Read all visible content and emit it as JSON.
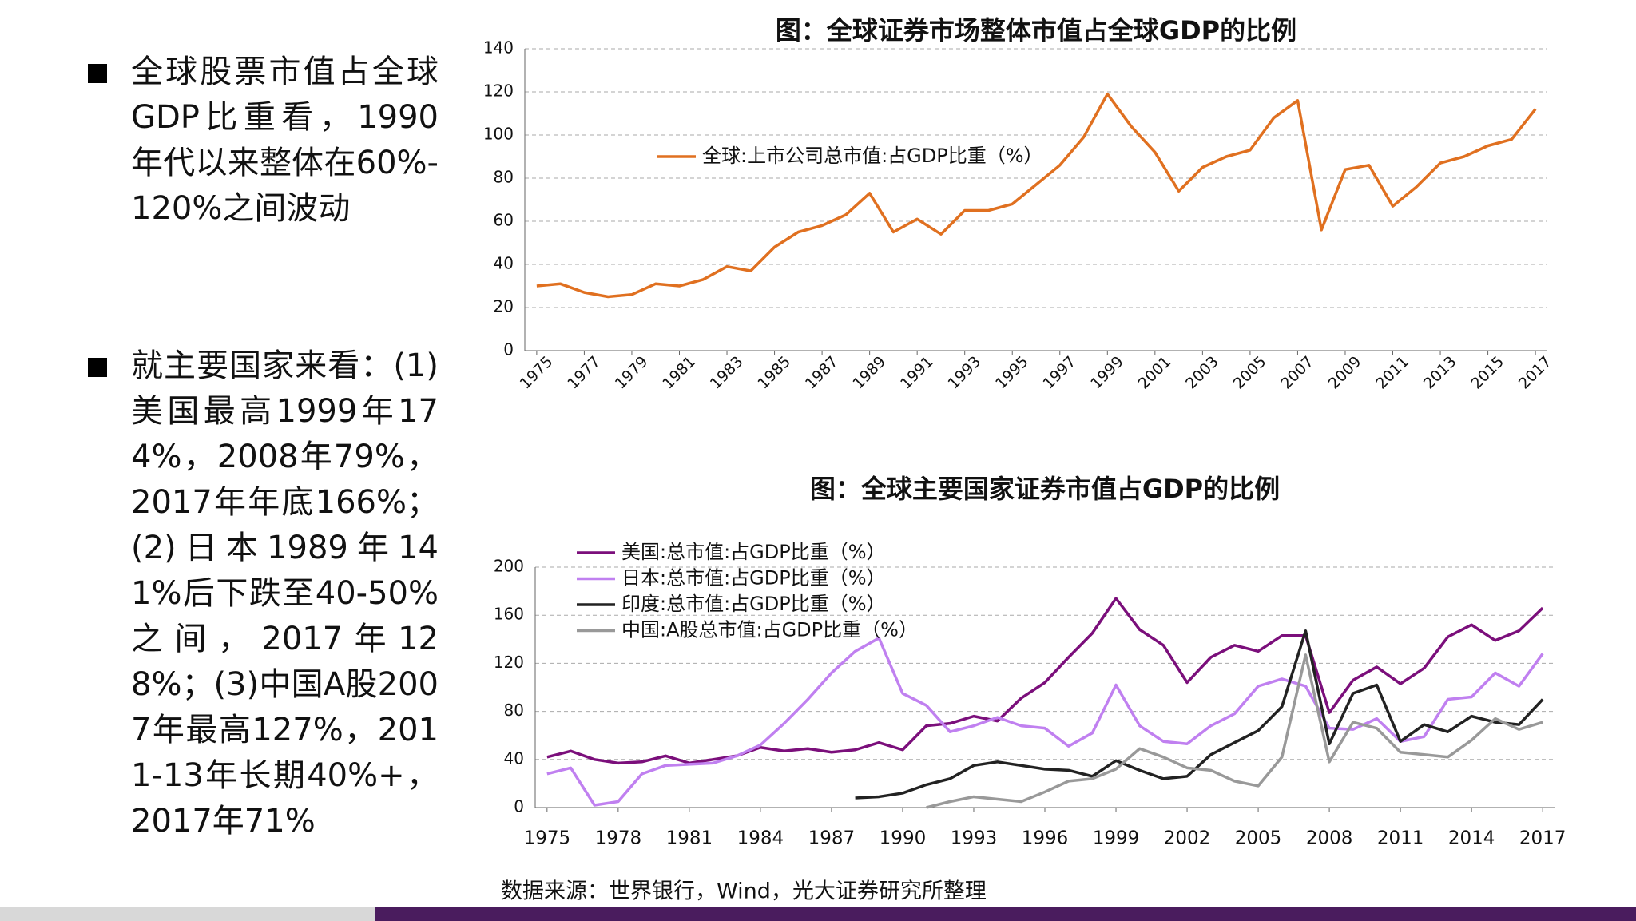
{
  "bullets": [
    "全球股票市值占全球GDP比重看，1990年代以来整体在60%-120%之间波动",
    "就主要国家来看：(1)美国最高1999年174%，2008年79%，2017年年底166%；(2)日本1989年141%后下跌至40-50%之间，2017年128%；(3)中国A股2007年最高127%，2011-13年长期40%+，2017年71%"
  ],
  "source": "数据来源：世界银行，Wind，光大证券研究所整理",
  "chart_data": [
    {
      "type": "line",
      "title": "图：全球证券市场整体市值占全球GDP的比例",
      "x": [
        1975,
        1976,
        1977,
        1978,
        1979,
        1980,
        1981,
        1982,
        1983,
        1984,
        1985,
        1986,
        1987,
        1988,
        1989,
        1990,
        1991,
        1992,
        1993,
        1994,
        1995,
        1996,
        1997,
        1998,
        1999,
        2000,
        2001,
        2002,
        2003,
        2004,
        2005,
        2006,
        2007,
        2008,
        2009,
        2010,
        2011,
        2012,
        2013,
        2014,
        2015,
        2016,
        2017
      ],
      "xlim": [
        1974.5,
        2017.5
      ],
      "xticks": [
        1975,
        1977,
        1979,
        1981,
        1983,
        1985,
        1987,
        1989,
        1991,
        1993,
        1995,
        1997,
        1999,
        2001,
        2003,
        2005,
        2007,
        2009,
        2011,
        2013,
        2015,
        2017
      ],
      "ylim": [
        0,
        140
      ],
      "yticks": [
        0,
        20,
        40,
        60,
        80,
        100,
        120,
        140
      ],
      "grid": true,
      "legend": "left",
      "series": [
        {
          "name": "全球:上市公司总市值:占GDP比重（%）",
          "color": "#e07020",
          "values": [
            30,
            31,
            27,
            25,
            26,
            31,
            30,
            33,
            39,
            37,
            48,
            55,
            58,
            63,
            73,
            55,
            61,
            54,
            65,
            65,
            68,
            77,
            86,
            99,
            119,
            104,
            92,
            74,
            85,
            90,
            93,
            108,
            116,
            56,
            84,
            86,
            67,
            76,
            87,
            90,
            95,
            98,
            112
          ]
        }
      ]
    },
    {
      "type": "line",
      "title": "图：全球主要国家证券市值占GDP的比例",
      "x": [
        1975,
        1976,
        1977,
        1978,
        1979,
        1980,
        1981,
        1982,
        1983,
        1984,
        1985,
        1986,
        1987,
        1988,
        1989,
        1990,
        1991,
        1992,
        1993,
        1994,
        1995,
        1996,
        1997,
        1998,
        1999,
        2000,
        2001,
        2002,
        2003,
        2004,
        2005,
        2006,
        2007,
        2008,
        2009,
        2010,
        2011,
        2012,
        2013,
        2014,
        2015,
        2016,
        2017
      ],
      "xlim": [
        1974.5,
        2017.5
      ],
      "xticks": [
        1975,
        1978,
        1981,
        1984,
        1987,
        1990,
        1993,
        1996,
        1999,
        2002,
        2005,
        2008,
        2011,
        2014,
        2017
      ],
      "ylim": [
        0,
        200
      ],
      "yticks": [
        0,
        40,
        80,
        120,
        160,
        200
      ],
      "grid": true,
      "legend": "upper left",
      "series": [
        {
          "name": "美国:总市值:占GDP比重（%）",
          "color": "#7b0f7b",
          "values": [
            42,
            47,
            40,
            37,
            38,
            43,
            37,
            40,
            43,
            50,
            47,
            49,
            46,
            48,
            54,
            48,
            68,
            70,
            76,
            72,
            91,
            104,
            125,
            145,
            174,
            148,
            135,
            104,
            125,
            135,
            130,
            143,
            143,
            79,
            106,
            117,
            103,
            116,
            142,
            152,
            139,
            147,
            166
          ]
        },
        {
          "name": "日本:总市值:占GDP比重（%）",
          "color": "#c080f0",
          "values": [
            28,
            33,
            2,
            5,
            28,
            35,
            36,
            37,
            43,
            52,
            70,
            90,
            112,
            130,
            141,
            95,
            85,
            63,
            68,
            75,
            68,
            66,
            51,
            62,
            102,
            68,
            55,
            53,
            68,
            78,
            101,
            107,
            101,
            66,
            65,
            74,
            55,
            59,
            90,
            92,
            112,
            101,
            128
          ]
        },
        {
          "name": "印度:总市值:占GDP比重（%）",
          "color": "#222222",
          "values": [
            null,
            null,
            null,
            null,
            null,
            null,
            null,
            null,
            null,
            null,
            null,
            null,
            null,
            8,
            9,
            12,
            19,
            24,
            35,
            38,
            35,
            32,
            31,
            26,
            39,
            31,
            24,
            26,
            44,
            54,
            64,
            84,
            147,
            53,
            95,
            102,
            55,
            69,
            63,
            76,
            71,
            69,
            90
          ]
        },
        {
          "name": "中国:A股总市值:占GDP比重（%）",
          "color": "#999999",
          "values": [
            null,
            null,
            null,
            null,
            null,
            null,
            null,
            null,
            null,
            null,
            null,
            null,
            null,
            null,
            null,
            null,
            0,
            5,
            9,
            7,
            5,
            13,
            22,
            24,
            32,
            49,
            42,
            33,
            31,
            22,
            18,
            42,
            127,
            38,
            71,
            66,
            46,
            44,
            42,
            56,
            74,
            65,
            71
          ]
        }
      ]
    }
  ]
}
